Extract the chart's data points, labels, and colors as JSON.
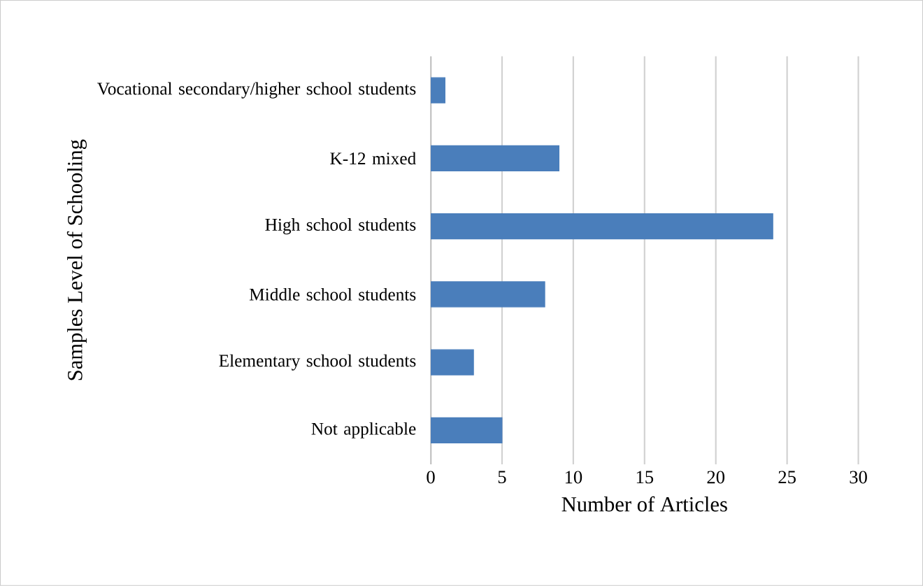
{
  "chart_data": {
    "type": "bar",
    "orientation": "horizontal",
    "xlabel": "Number of Articles",
    "ylabel": "Samples Level of Schooling",
    "categories": [
      "Vocational secondary/higher school students",
      "K-12 mixed",
      "High school students",
      "Middle school students",
      "Elementary school students",
      "Not  applicable"
    ],
    "values": [
      1,
      9,
      24,
      8,
      3,
      5
    ],
    "color": "#4a7ebb",
    "xlim": [
      0,
      30
    ],
    "xticks": [
      0,
      5,
      10,
      15,
      20,
      25,
      30
    ],
    "grid": "x"
  }
}
